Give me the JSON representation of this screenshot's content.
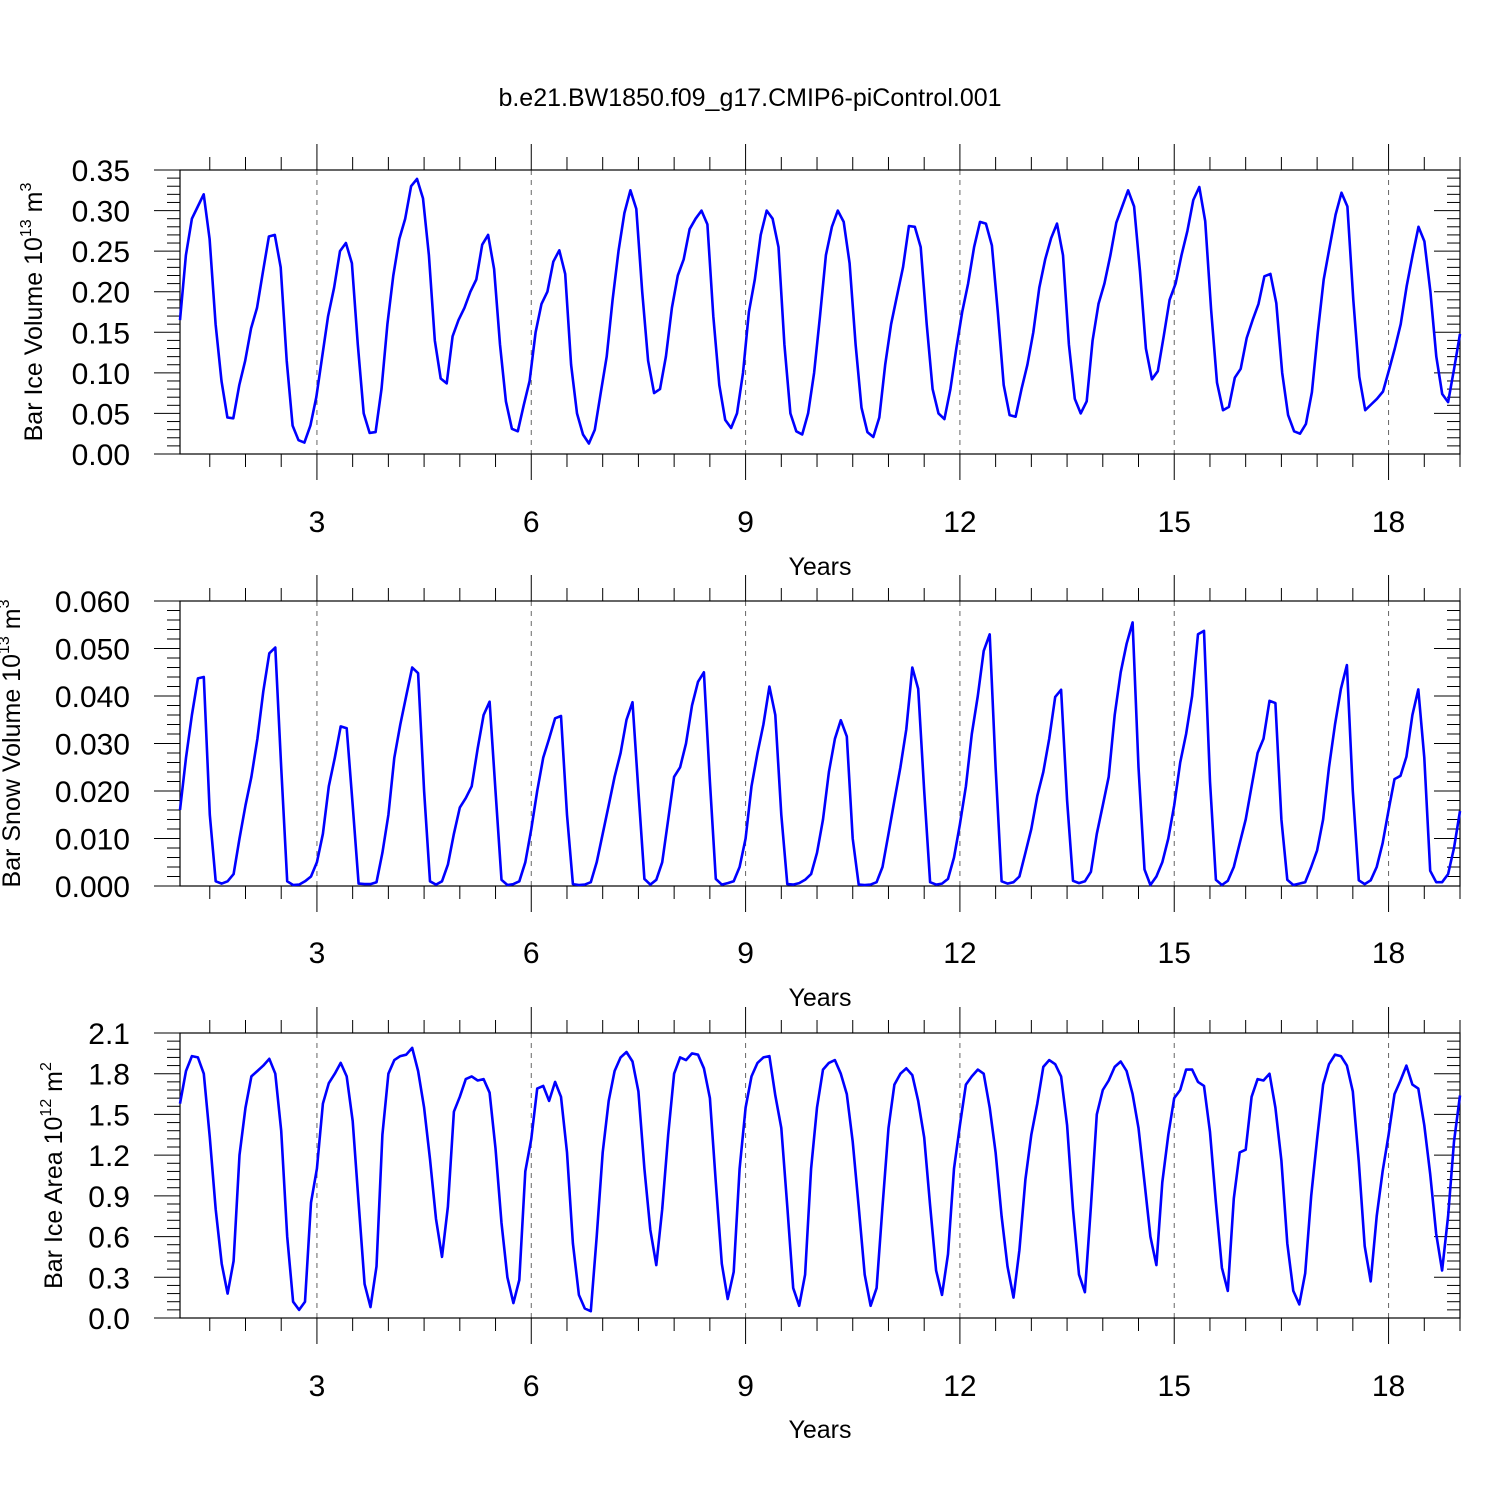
{
  "title": "b.e21.BW1850.f09_g17.CMIP6-piControl.001",
  "chart_data": [
    {
      "type": "line",
      "title": "b.e21.BW1850.f09_g17.CMIP6-piControl.001",
      "ylabel": {
        "main": "Bar Ice Volume 10",
        "exp": "13",
        "unit": " m",
        "unit_exp": "3"
      },
      "xlabel": "Years",
      "xlim": [
        1.0833,
        19.0
      ],
      "ylim": [
        0,
        0.35
      ],
      "xticks": [
        3,
        6,
        9,
        12,
        15,
        18
      ],
      "xticklabels": [
        "3",
        "6",
        "9",
        "12",
        "15",
        "18"
      ],
      "yticks": [
        0,
        0.05,
        0.1,
        0.15,
        0.2,
        0.25,
        0.3,
        0.35
      ],
      "yticklabels": [
        "0.00",
        "0.05",
        "0.10",
        "0.15",
        "0.20",
        "0.25",
        "0.30",
        "0.35"
      ],
      "grid": "vertical dashed at major x ticks",
      "line_color": "#0000ff",
      "series": [
        {
          "values": [
            0.165,
            0.245,
            0.29,
            0.305,
            0.32,
            0.265,
            0.16,
            0.09,
            0.045,
            0.044,
            0.085,
            0.115,
            0.155,
            0.18,
            0.225,
            0.268,
            0.27,
            0.23,
            0.115,
            0.035,
            0.017,
            0.014,
            0.035,
            0.07,
            0.12,
            0.17,
            0.205,
            0.25,
            0.26,
            0.235,
            0.135,
            0.05,
            0.026,
            0.027,
            0.08,
            0.16,
            0.22,
            0.265,
            0.29,
            0.33,
            0.339,
            0.315,
            0.245,
            0.14,
            0.093,
            0.087,
            0.145,
            0.165,
            0.18,
            0.2,
            0.215,
            0.258,
            0.27,
            0.228,
            0.135,
            0.065,
            0.031,
            0.028,
            0.06,
            0.09,
            0.15,
            0.185,
            0.2,
            0.237,
            0.251,
            0.222,
            0.11,
            0.05,
            0.024,
            0.013,
            0.03,
            0.075,
            0.12,
            0.19,
            0.25,
            0.297,
            0.325,
            0.302,
            0.2,
            0.115,
            0.075,
            0.08,
            0.12,
            0.18,
            0.22,
            0.24,
            0.277,
            0.29,
            0.3,
            0.283,
            0.17,
            0.085,
            0.042,
            0.032,
            0.05,
            0.1,
            0.175,
            0.215,
            0.27,
            0.3,
            0.29,
            0.255,
            0.135,
            0.05,
            0.028,
            0.024,
            0.05,
            0.1,
            0.17,
            0.245,
            0.28,
            0.3,
            0.286,
            0.235,
            0.135,
            0.057,
            0.027,
            0.021,
            0.045,
            0.11,
            0.16,
            0.195,
            0.23,
            0.281,
            0.28,
            0.255,
            0.16,
            0.08,
            0.05,
            0.043,
            0.08,
            0.13,
            0.175,
            0.21,
            0.255,
            0.286,
            0.284,
            0.257,
            0.175,
            0.085,
            0.048,
            0.046,
            0.08,
            0.11,
            0.15,
            0.205,
            0.24,
            0.266,
            0.284,
            0.245,
            0.135,
            0.068,
            0.05,
            0.065,
            0.14,
            0.185,
            0.21,
            0.245,
            0.285,
            0.305,
            0.325,
            0.305,
            0.225,
            0.13,
            0.092,
            0.102,
            0.145,
            0.19,
            0.21,
            0.245,
            0.275,
            0.313,
            0.329,
            0.287,
            0.178,
            0.088,
            0.054,
            0.058,
            0.094,
            0.105,
            0.143,
            0.165,
            0.185,
            0.219,
            0.222,
            0.186,
            0.1,
            0.048,
            0.028,
            0.025,
            0.037,
            0.076,
            0.15,
            0.215,
            0.255,
            0.295,
            0.322,
            0.305,
            0.19,
            0.095,
            0.054,
            0.061,
            0.068,
            0.077,
            0.103,
            0.13,
            0.16,
            0.207,
            0.245,
            0.28,
            0.262,
            0.2,
            0.12,
            0.074,
            0.064,
            0.105,
            0.148
          ]
        }
      ]
    },
    {
      "type": "line",
      "ylabel": {
        "main": "Bar Snow Volume 10",
        "exp": "13",
        "unit": " m",
        "unit_exp": "3"
      },
      "xlabel": "Years",
      "xlim": [
        1.0833,
        19.0
      ],
      "ylim": [
        0,
        0.06
      ],
      "xticks": [
        3,
        6,
        9,
        12,
        15,
        18
      ],
      "xticklabels": [
        "3",
        "6",
        "9",
        "12",
        "15",
        "18"
      ],
      "yticks": [
        0,
        0.01,
        0.02,
        0.03,
        0.04,
        0.05,
        0.06
      ],
      "yticklabels": [
        "0.000",
        "0.010",
        "0.020",
        "0.030",
        "0.040",
        "0.050",
        "0.060"
      ],
      "grid": "vertical dashed at major x ticks",
      "line_color": "#0000ff",
      "series": [
        {
          "values": [
            0.016,
            0.027,
            0.036,
            0.0437,
            0.044,
            0.015,
            0.001,
            0.0005,
            0.001,
            0.0025,
            0.01,
            0.017,
            0.023,
            0.031,
            0.041,
            0.049,
            0.0502,
            0.025,
            0.001,
            0.0002,
            0.0003,
            0.001,
            0.002,
            0.005,
            0.011,
            0.021,
            0.027,
            0.0336,
            0.0332,
            0.017,
            0.0005,
            0.0004,
            0.0004,
            0.0008,
            0.007,
            0.015,
            0.027,
            0.034,
            0.04,
            0.046,
            0.0448,
            0.02,
            0.001,
            0.0003,
            0.001,
            0.0045,
            0.011,
            0.0165,
            0.0185,
            0.021,
            0.029,
            0.036,
            0.0388,
            0.02,
            0.0013,
            0.0002,
            0.0004,
            0.001,
            0.005,
            0.012,
            0.02,
            0.027,
            0.031,
            0.0353,
            0.0358,
            0.015,
            0.0004,
            0.0002,
            0.0003,
            0.0008,
            0.005,
            0.011,
            0.017,
            0.023,
            0.028,
            0.035,
            0.0387,
            0.02,
            0.0015,
            0.0003,
            0.0013,
            0.005,
            0.014,
            0.023,
            0.025,
            0.03,
            0.038,
            0.043,
            0.045,
            0.022,
            0.0015,
            0.0003,
            0.0006,
            0.001,
            0.004,
            0.01,
            0.021,
            0.028,
            0.034,
            0.042,
            0.036,
            0.015,
            0.0004,
            0.0003,
            0.0006,
            0.0013,
            0.0025,
            0.007,
            0.014,
            0.024,
            0.031,
            0.0349,
            0.0315,
            0.01,
            0.0003,
            0.0002,
            0.0003,
            0.0008,
            0.004,
            0.011,
            0.018,
            0.025,
            0.033,
            0.046,
            0.0415,
            0.02,
            0.0008,
            0.0003,
            0.0005,
            0.0015,
            0.006,
            0.013,
            0.021,
            0.032,
            0.04,
            0.0495,
            0.053,
            0.025,
            0.001,
            0.0005,
            0.0008,
            0.002,
            0.007,
            0.012,
            0.019,
            0.024,
            0.031,
            0.0398,
            0.0413,
            0.018,
            0.0011,
            0.0006,
            0.001,
            0.003,
            0.011,
            0.017,
            0.023,
            0.036,
            0.045,
            0.051,
            0.0555,
            0.025,
            0.0035,
            0.0002,
            0.002,
            0.005,
            0.01,
            0.017,
            0.026,
            0.032,
            0.04,
            0.053,
            0.0537,
            0.022,
            0.0013,
            0.0002,
            0.0011,
            0.004,
            0.009,
            0.014,
            0.021,
            0.028,
            0.031,
            0.039,
            0.0385,
            0.014,
            0.0013,
            0.0002,
            0.0005,
            0.0008,
            0.004,
            0.0075,
            0.014,
            0.025,
            0.034,
            0.0415,
            0.0465,
            0.02,
            0.0012,
            0.0004,
            0.0012,
            0.004,
            0.009,
            0.016,
            0.0225,
            0.0232,
            0.0272,
            0.036,
            0.0414,
            0.027,
            0.0032,
            0.0008,
            0.0008,
            0.0025,
            0.008,
            0.0158
          ]
        }
      ]
    },
    {
      "type": "line",
      "ylabel": {
        "main": "Bar Ice Area 10",
        "exp": "12",
        "unit": " m",
        "unit_exp": "2"
      },
      "xlabel": "Years",
      "xlim": [
        1.0833,
        19.0
      ],
      "ylim": [
        0,
        2.1
      ],
      "xticks": [
        3,
        6,
        9,
        12,
        15,
        18
      ],
      "xticklabels": [
        "3",
        "6",
        "9",
        "12",
        "15",
        "18"
      ],
      "yticks": [
        0,
        0.3,
        0.6,
        0.9,
        1.2,
        1.5,
        1.8,
        2.1
      ],
      "yticklabels": [
        "0.0",
        "0.3",
        "0.6",
        "0.9",
        "1.2",
        "1.5",
        "1.8",
        "2.1"
      ],
      "grid": "vertical dashed at major x ticks",
      "line_color": "#0000ff",
      "series": [
        {
          "values": [
            1.58,
            1.82,
            1.93,
            1.92,
            1.8,
            1.33,
            0.8,
            0.4,
            0.18,
            0.42,
            1.2,
            1.55,
            1.78,
            1.82,
            1.86,
            1.91,
            1.8,
            1.38,
            0.6,
            0.12,
            0.06,
            0.12,
            0.85,
            1.1,
            1.58,
            1.73,
            1.8,
            1.88,
            1.78,
            1.45,
            0.85,
            0.25,
            0.08,
            0.38,
            1.35,
            1.8,
            1.9,
            1.93,
            1.94,
            1.99,
            1.82,
            1.55,
            1.17,
            0.73,
            0.45,
            0.82,
            1.52,
            1.63,
            1.76,
            1.78,
            1.75,
            1.76,
            1.66,
            1.25,
            0.7,
            0.3,
            0.11,
            0.28,
            1.08,
            1.32,
            1.69,
            1.71,
            1.6,
            1.74,
            1.63,
            1.22,
            0.55,
            0.17,
            0.07,
            0.05,
            0.6,
            1.22,
            1.6,
            1.82,
            1.92,
            1.96,
            1.89,
            1.67,
            1.1,
            0.65,
            0.39,
            0.8,
            1.35,
            1.8,
            1.92,
            1.9,
            1.95,
            1.94,
            1.84,
            1.62,
            1.0,
            0.4,
            0.14,
            0.34,
            1.1,
            1.55,
            1.78,
            1.88,
            1.92,
            1.93,
            1.64,
            1.4,
            0.82,
            0.22,
            0.09,
            0.32,
            1.1,
            1.55,
            1.83,
            1.88,
            1.9,
            1.8,
            1.65,
            1.3,
            0.82,
            0.32,
            0.09,
            0.22,
            0.82,
            1.4,
            1.72,
            1.8,
            1.84,
            1.79,
            1.6,
            1.33,
            0.83,
            0.35,
            0.17,
            0.47,
            1.1,
            1.42,
            1.72,
            1.78,
            1.83,
            1.8,
            1.55,
            1.22,
            0.75,
            0.38,
            0.15,
            0.5,
            1.02,
            1.35,
            1.58,
            1.85,
            1.9,
            1.87,
            1.78,
            1.42,
            0.8,
            0.32,
            0.19,
            0.82,
            1.5,
            1.68,
            1.75,
            1.85,
            1.89,
            1.82,
            1.65,
            1.4,
            1.0,
            0.6,
            0.39,
            1.0,
            1.35,
            1.62,
            1.68,
            1.83,
            1.83,
            1.74,
            1.71,
            1.37,
            0.85,
            0.37,
            0.2,
            0.88,
            1.22,
            1.24,
            1.63,
            1.76,
            1.75,
            1.8,
            1.55,
            1.16,
            0.55,
            0.2,
            0.1,
            0.33,
            0.9,
            1.32,
            1.72,
            1.87,
            1.94,
            1.93,
            1.86,
            1.67,
            1.15,
            0.53,
            0.27,
            0.75,
            1.08,
            1.35,
            1.65,
            1.75,
            1.86,
            1.72,
            1.69,
            1.42,
            1.06,
            0.62,
            0.35,
            0.75,
            1.3,
            1.64
          ]
        }
      ]
    }
  ]
}
